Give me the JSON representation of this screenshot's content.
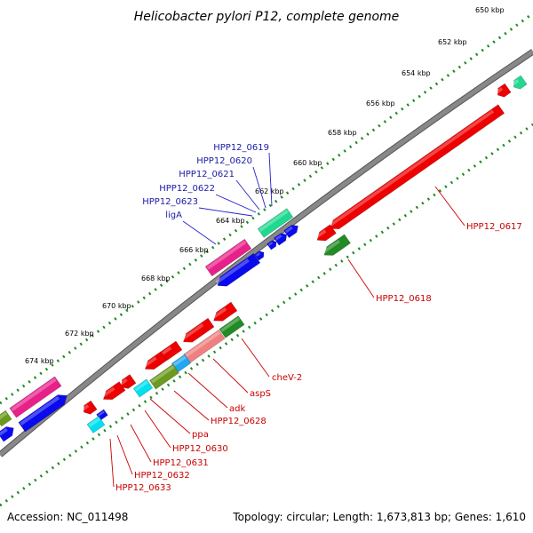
{
  "title": "Helicobacter pylori P12, complete genome",
  "footer": {
    "accession": "Accession: NC_011498",
    "summary": "Topology: circular; Length: 1,673,813 bp; Genes: 1,610"
  },
  "ticks": [
    "650 kbp",
    "652 kbp",
    "654 kbp",
    "656 kbp",
    "658 kbp",
    "660 kbp",
    "662 kbp",
    "664 kbp",
    "666 kbp",
    "668 kbp",
    "670 kbp",
    "672 kbp",
    "674 kbp"
  ],
  "labels": {
    "forward": [
      "HPP12_0619",
      "HPP12_0620",
      "HPP12_0621",
      "HPP12_0622",
      "HPP12_0623",
      "ligA"
    ],
    "reverse": [
      "HPP12_0617",
      "HPP12_0618",
      "cheV-2",
      "aspS",
      "adk",
      "HPP12_0628",
      "ppa",
      "HPP12_0630",
      "HPP12_0631",
      "HPP12_0632",
      "HPP12_0633"
    ]
  },
  "colors": {
    "cds": "#ee0000",
    "blue": "#0a0aee",
    "magenta": "#e8208a",
    "teal": "#20d890",
    "darkgreen": "#238b23",
    "olive": "#6b9a1e",
    "cyan": "#00e0f0",
    "pink": "#f08080",
    "skyblue": "#20a8f0"
  }
}
